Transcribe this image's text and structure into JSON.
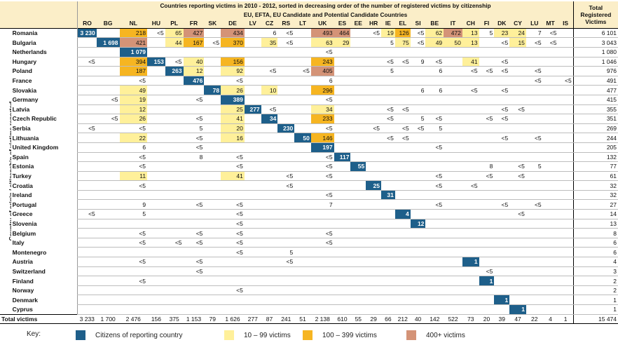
{
  "title_line1": "Countries reporting victims in 2010 - 2012,  sorted in decreasing order of the number of registered victims by citizenship",
  "title_line2": "EU, EFTA, EU Candidate and Potential Candidate Countries",
  "total_header": [
    "Total",
    "Registered",
    "Victims"
  ],
  "y_axis_label": "Country of origin / citizenship of victims reported",
  "columns": [
    "RO",
    "BG",
    "NL",
    "HU",
    "PL",
    "FR",
    "SK",
    "DE",
    "LV",
    "CZ",
    "RS",
    "LT",
    "UK",
    "ES",
    "EE",
    "HR",
    "IE",
    "EL",
    "SI",
    "BE",
    "IT",
    "CH",
    "FI",
    "DK",
    "CY",
    "LU",
    "MT",
    "IS"
  ],
  "colors": {
    "self": "#1e5f8a",
    "low": "#fff09a",
    "mid": "#f6b521",
    "high": "#d49377"
  },
  "rows": [
    {
      "country": "Romania",
      "total": "6 101",
      "cells": {
        "RO": "3 230",
        "NL": "218",
        "HU": "<5",
        "PL": "65",
        "FR": "427",
        "DE": "434",
        "CZ": "6",
        "RS": "<5",
        "UK": "493",
        "ES": "464",
        "HR": "<5",
        "IE": "19",
        "EL": "126",
        "SI": "<5",
        "BE": "62",
        "IT": "472",
        "CH": "13",
        "FI": "5",
        "DK": "23",
        "CY": "24",
        "LU": "7",
        "MT": "<5"
      },
      "self": "RO"
    },
    {
      "country": "Bulgaria",
      "total": "3 043",
      "cells": {
        "BG": "1 698",
        "NL": "421",
        "PL": "44",
        "FR": "167",
        "SK": "<5",
        "DE": "370",
        "CZ": "35",
        "RS": "<5",
        "UK": "63",
        "ES": "29",
        "IE": "5",
        "EL": "75",
        "SI": "<5",
        "BE": "49",
        "IT": "50",
        "CH": "13",
        "DK": "<5",
        "CY": "15",
        "LU": "<5",
        "MT": "<5"
      },
      "self": "BG"
    },
    {
      "country": "Netherlands",
      "total": "1 080",
      "cells": {
        "NL": "1 079",
        "UK": "<5"
      },
      "self": "NL"
    },
    {
      "country": "Hungary",
      "total": "1 046",
      "cells": {
        "RO": "<5",
        "NL": "394",
        "HU": "153",
        "PL": "<5",
        "FR": "40",
        "DE": "156",
        "UK": "243",
        "IE": "<5",
        "EL": "<5",
        "SI": "9",
        "BE": "<5",
        "CH": "41",
        "DK": "<5"
      },
      "self": "HU"
    },
    {
      "country": "Poland",
      "total": "976",
      "cells": {
        "NL": "187",
        "PL": "263",
        "FR": "12",
        "DE": "92",
        "CZ": "<5",
        "LT": "<5",
        "UK": "405",
        "IE": "5",
        "BE": "6",
        "CH": "<5",
        "FI": "<5",
        "DK": "<5",
        "LU": "<5"
      },
      "self": "PL"
    },
    {
      "country": "France",
      "total": "491",
      "cells": {
        "NL": "<5",
        "FR": "476",
        "DE": "<5",
        "UK": "6",
        "LU": "<5",
        "IS": "<5"
      },
      "self": "FR"
    },
    {
      "country": "Slovakia",
      "total": "477",
      "cells": {
        "NL": "49",
        "SK": "78",
        "DE": "26",
        "CZ": "10",
        "UK": "296",
        "SI": "6",
        "BE": "6",
        "CH": "<5",
        "DK": "<5"
      },
      "self": "SK"
    },
    {
      "country": "Germany",
      "total": "415",
      "cells": {
        "BG": "<5",
        "NL": "19",
        "FR": "<5",
        "DE": "389",
        "UK": "<5"
      },
      "self": "DE"
    },
    {
      "country": "Latvia",
      "total": "355",
      "cells": {
        "NL": "12",
        "DE": "25",
        "LV": "277",
        "CZ": "<5",
        "UK": "34",
        "IE": "<5",
        "EL": "<5",
        "DK": "<5",
        "CY": "<5"
      },
      "self": "LV"
    },
    {
      "country": "Czech Republic",
      "total": "351",
      "cells": {
        "BG": "<5",
        "NL": "26",
        "FR": "<5",
        "DE": "41",
        "CZ": "34",
        "UK": "233",
        "IE": "<5",
        "SI": "5",
        "BE": "<5",
        "FI": "<5",
        "DK": "<5"
      },
      "self": "CZ"
    },
    {
      "country": "Serbia",
      "total": "269",
      "cells": {
        "RO": "<5",
        "NL": "<5",
        "FR": "5",
        "DE": "20",
        "RS": "230",
        "UK": "<5",
        "HR": "<5",
        "EL": "<5",
        "SI": "<5",
        "BE": "5"
      },
      "self": "RS"
    },
    {
      "country": "Lithuania",
      "total": "244",
      "cells": {
        "NL": "22",
        "FR": "<5",
        "DE": "16",
        "LT": "50",
        "UK": "146",
        "IE": "<5",
        "EL": "<5",
        "DK": "<5",
        "LU": "<5"
      },
      "self": "LT"
    },
    {
      "country": "United Kingdom",
      "total": "205",
      "cells": {
        "NL": "6",
        "FR": "<5",
        "UK": "197",
        "BE": "<5"
      },
      "self": "UK"
    },
    {
      "country": "Spain",
      "total": "132",
      "cells": {
        "NL": "<5",
        "FR": "8",
        "DE": "<5",
        "UK": "<5",
        "ES": "117"
      },
      "self": "ES"
    },
    {
      "country": "Estonia",
      "total": "77",
      "cells": {
        "NL": "<5",
        "DE": "<5",
        "UK": "<5",
        "EE": "55",
        "FI": "8",
        "CY": "<5",
        "LU": "5"
      },
      "self": "EE"
    },
    {
      "country": "Turkey",
      "total": "61",
      "cells": {
        "NL": "11",
        "DE": "41",
        "RS": "<5",
        "UK": "<5",
        "BE": "<5",
        "FI": "<5",
        "CY": "<5"
      },
      "self": ""
    },
    {
      "country": "Croatia",
      "total": "32",
      "cells": {
        "NL": "<5",
        "RS": "<5",
        "HR": "25",
        "BE": "<5",
        "CH": "<5"
      },
      "self": "HR"
    },
    {
      "country": "Ireland",
      "total": "32",
      "cells": {
        "UK": "<5",
        "IE": "31"
      },
      "self": "IE"
    },
    {
      "country": "Portugal",
      "total": "27",
      "cells": {
        "NL": "9",
        "FR": "<5",
        "DE": "<5",
        "UK": "7",
        "BE": "<5",
        "DK": "<5",
        "LU": "<5"
      },
      "self": ""
    },
    {
      "country": "Greece",
      "total": "14",
      "cells": {
        "RO": "<5",
        "NL": "5",
        "DE": "<5",
        "EL": "4",
        "CY": "<5"
      },
      "self": "EL"
    },
    {
      "country": "Slovenia",
      "total": "13",
      "cells": {
        "DE": "<5",
        "SI": "12"
      },
      "self": "SI"
    },
    {
      "country": "Belgium",
      "total": "8",
      "cells": {
        "NL": "<5",
        "FR": "<5",
        "DE": "<5",
        "UK": "<5"
      },
      "self": ""
    },
    {
      "country": "Italy",
      "total": "6",
      "cells": {
        "NL": "<5",
        "PL": "<5",
        "FR": "<5",
        "DE": "<5",
        "UK": "<5"
      },
      "self": ""
    },
    {
      "country": "Montenegro",
      "total": "6",
      "cells": {
        "DE": "<5",
        "RS": "5"
      },
      "self": ""
    },
    {
      "country": "Austria",
      "total": "4",
      "cells": {
        "NL": "<5",
        "FR": "<5",
        "RS": "<5",
        "CH": "1"
      },
      "self": "CH"
    },
    {
      "country": "Switzerland",
      "total": "3",
      "cells": {
        "FR": "<5",
        "FI": "<5"
      },
      "self": ""
    },
    {
      "country": "Finland",
      "total": "2",
      "cells": {
        "NL": "<5",
        "FI": "1"
      },
      "self": "FI"
    },
    {
      "country": "Norway",
      "total": "2",
      "cells": {
        "DE": "<5"
      },
      "self": ""
    },
    {
      "country": "Denmark",
      "total": "1",
      "cells": {
        "DK": "1"
      },
      "self": "DK"
    },
    {
      "country": "Cyprus",
      "total": "1",
      "cells": {
        "CY": "1"
      },
      "self": "CY"
    }
  ],
  "totals_row": {
    "label": "Total victims",
    "values": [
      "3 233",
      "1 700",
      "2 476",
      "156",
      "375",
      "1 153",
      "79",
      "1 626",
      "277",
      "87",
      "241",
      "51",
      "2 138",
      "610",
      "55",
      "29",
      "66",
      "212",
      "40",
      "142",
      "522",
      "73",
      "20",
      "39",
      "47",
      "22",
      "4",
      "1"
    ],
    "grand_total": "15 474"
  },
  "legend": {
    "key_label": "Key:",
    "items": [
      {
        "label": "Citizens of reporting country",
        "class": "self"
      },
      {
        "label": "10 – 99 victims",
        "class": "low"
      },
      {
        "label": "100 – 399 victims",
        "class": "mid"
      },
      {
        "label": "400+ victims",
        "class": "high"
      }
    ]
  }
}
